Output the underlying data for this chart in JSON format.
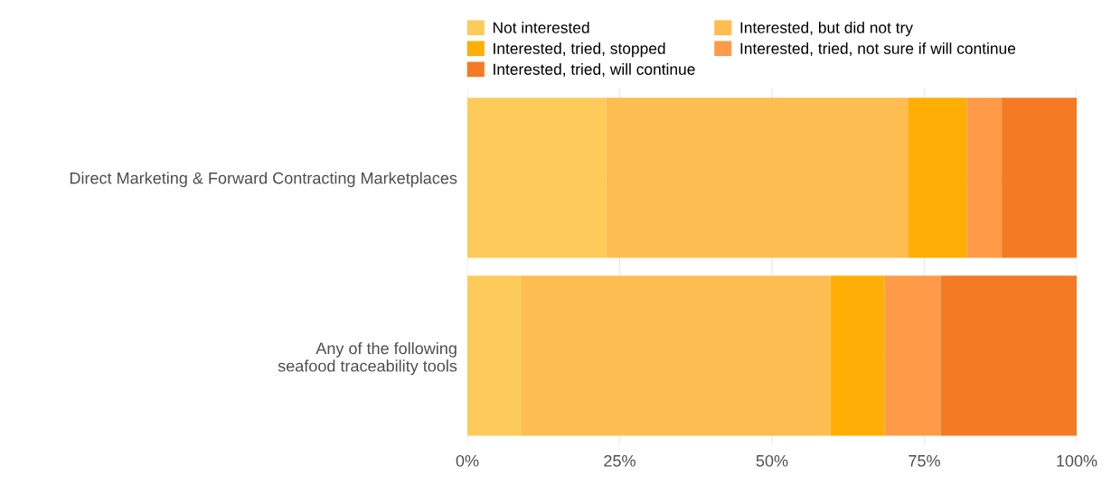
{
  "chart_data": {
    "type": "bar",
    "orientation": "horizontal",
    "stacked": true,
    "categories": [
      "Direct Marketing & Forward Contracting Marketplaces",
      "Any of the following\nseafood traceability tools"
    ],
    "series": [
      {
        "name": "Not interested",
        "color": "#fdcb5a",
        "values": [
          22.8,
          8.9
        ]
      },
      {
        "name": "Interested, but did not try",
        "color": "#fdbd50",
        "values": [
          49.6,
          50.7
        ]
      },
      {
        "name": "Interested, tried, stopped",
        "color": "#feae05",
        "values": [
          9.6,
          8.9
        ]
      },
      {
        "name": "Interested, tried, not sure if will continue",
        "color": "#fe9a48",
        "values": [
          5.7,
          9.2
        ]
      },
      {
        "name": "Interested, tried, will continue",
        "color": "#f47a24",
        "values": [
          12.3,
          22.3
        ]
      }
    ],
    "xlim": [
      0,
      100
    ],
    "xticks": [
      {
        "value": 0,
        "label": "0%"
      },
      {
        "value": 25,
        "label": "25%"
      },
      {
        "value": 50,
        "label": "50%"
      },
      {
        "value": 75,
        "label": "75%"
      },
      {
        "value": 100,
        "label": "100%"
      }
    ],
    "grid": true,
    "legend": "top"
  }
}
